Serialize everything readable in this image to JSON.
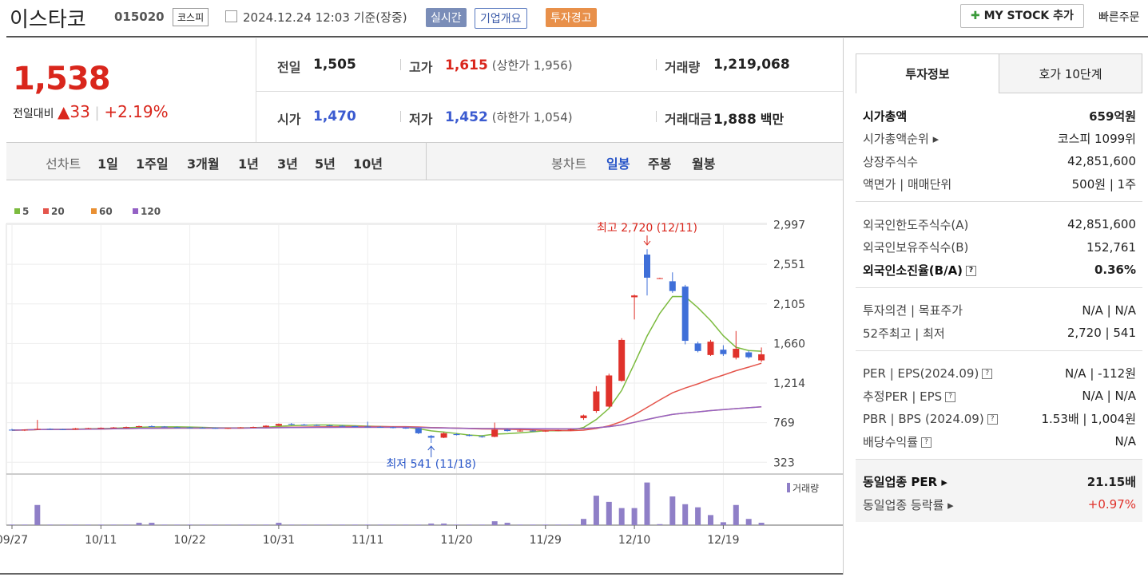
{
  "header": {
    "name": "이스타코",
    "code": "015020",
    "market": "코스피",
    "timestamp": "2024.12.24 12:03 기준(장중)",
    "buttons": [
      "실시간",
      "기업개요",
      "투자경고"
    ],
    "mystock": "MY STOCK 추가",
    "quick_order": "빠른주문"
  },
  "price": {
    "current": "1,538",
    "change_label": "전일대비",
    "change": "33",
    "change_pct": "+2.19%"
  },
  "summary": {
    "rows": [
      [
        {
          "label": "전일",
          "value": "1,505"
        },
        {
          "label": "고가",
          "value": "1,615",
          "extra": "(상한가 1,956)"
        },
        {
          "label": "거래량",
          "value": "1,219,068"
        }
      ],
      [
        {
          "label": "시가",
          "value": "1,470"
        },
        {
          "label": "저가",
          "value": "1,452",
          "extra": "(하한가 1,054)"
        },
        {
          "label": "거래대금",
          "value": "1,888",
          "unit": "백만"
        }
      ]
    ]
  },
  "period_tabs": {
    "line_label": "선차트",
    "line": [
      "1일",
      "1주일",
      "3개월",
      "1년",
      "3년",
      "5년",
      "10년"
    ],
    "candle_label": "봉차트",
    "candle": [
      "일봉",
      "주봉",
      "월봉"
    ],
    "selected_candle": 0
  },
  "chart_data": {
    "type": "candlestick",
    "categories": [
      "09/27",
      null,
      null,
      null,
      null,
      null,
      null,
      "10/11",
      null,
      null,
      null,
      null,
      null,
      null,
      "10/22",
      null,
      null,
      null,
      null,
      null,
      null,
      "10/31",
      null,
      null,
      null,
      null,
      null,
      null,
      "11/11",
      null,
      null,
      null,
      null,
      null,
      null,
      "11/20",
      null,
      null,
      null,
      null,
      null,
      null,
      "11/29",
      null,
      null,
      null,
      null,
      null,
      null,
      "12/10",
      null,
      null,
      null,
      null,
      null,
      null,
      "12/19",
      null,
      null,
      null
    ],
    "open": [
      690,
      685,
      690,
      700,
      695,
      692,
      705,
      708,
      712,
      715,
      720,
      730,
      725,
      718,
      715,
      712,
      710,
      706,
      710,
      716,
      720,
      735,
      755,
      748,
      742,
      738,
      733,
      730,
      726,
      722,
      718,
      712,
      706,
      620,
      600,
      640,
      630,
      615,
      610,
      690,
      675,
      680,
      672,
      678,
      684,
      820,
      900,
      950,
      1240,
      2180,
      2660,
      2390,
      2360,
      2300,
      1660,
      1530,
      1590,
      1500,
      1560,
      1470
    ],
    "high": [
      700,
      695,
      800,
      705,
      700,
      710,
      712,
      715,
      720,
      725,
      735,
      738,
      730,
      725,
      722,
      718,
      715,
      712,
      720,
      725,
      740,
      760,
      765,
      755,
      750,
      745,
      740,
      738,
      780,
      730,
      725,
      718,
      712,
      630,
      660,
      650,
      640,
      625,
      770,
      700,
      690,
      688,
      685,
      690,
      700,
      860,
      1180,
      1320,
      1720,
      2210,
      2720,
      2400,
      2460,
      2320,
      1680,
      1700,
      1640,
      1800,
      1580,
      1615
    ],
    "low": [
      680,
      675,
      685,
      690,
      685,
      688,
      698,
      700,
      705,
      708,
      715,
      720,
      715,
      710,
      708,
      705,
      700,
      698,
      705,
      710,
      715,
      730,
      740,
      735,
      732,
      728,
      725,
      720,
      718,
      712,
      705,
      700,
      640,
      541,
      595,
      625,
      615,
      600,
      605,
      670,
      668,
      670,
      665,
      672,
      678,
      800,
      880,
      940,
      1230,
      1930,
      2200,
      2385,
      2230,
      1650,
      1560,
      1520,
      1520,
      1480,
      1490,
      1452
    ],
    "close": [
      685,
      690,
      700,
      695,
      692,
      705,
      708,
      712,
      715,
      720,
      730,
      725,
      718,
      715,
      712,
      710,
      706,
      710,
      716,
      720,
      735,
      755,
      748,
      742,
      738,
      733,
      730,
      726,
      722,
      718,
      712,
      706,
      650,
      600,
      650,
      630,
      620,
      610,
      690,
      675,
      680,
      672,
      678,
      684,
      692,
      850,
      1120,
      1300,
      1700,
      2200,
      2400,
      2395,
      2250,
      1690,
      1575,
      1680,
      1540,
      1600,
      1505,
      1538
    ],
    "volume": [
      300000,
      300000,
      10400000,
      300000,
      300000,
      300000,
      300000,
      300000,
      300000,
      300000,
      1200000,
      1200000,
      300000,
      300000,
      300000,
      300000,
      300000,
      300000,
      300000,
      300000,
      300000,
      1200000,
      300000,
      300000,
      300000,
      300000,
      300000,
      300000,
      300000,
      300000,
      300000,
      300000,
      300000,
      800000,
      800000,
      300000,
      300000,
      300000,
      2000000,
      1200000,
      300000,
      300000,
      300000,
      300000,
      300000,
      3200000,
      15200000,
      12000000,
      8800000,
      8800000,
      22000000,
      500000,
      14800000,
      10800000,
      9200000,
      5200000,
      1500000,
      10400000,
      3200000,
      1219068
    ],
    "up_color": "#e0322b",
    "down_color": "#3f6fd8",
    "volume_color": "#8f7fc7",
    "volume_label": "거래량",
    "moving_averages": [
      {
        "name": "5",
        "color": "#7cbb3f"
      },
      {
        "name": "20",
        "color": "#e4554c"
      },
      {
        "name": "60",
        "color": "#e99033"
      },
      {
        "name": "120",
        "color": "#9461c5"
      }
    ],
    "ylim": [
      200,
      3010
    ],
    "yticks": [
      323,
      {
        "value": 769,
        "label": "769"
      },
      {
        "value": 1214,
        "label": "1,214"
      },
      {
        "value": 1660,
        "label": "1,660"
      },
      {
        "value": 2105,
        "label": "2,105"
      },
      {
        "value": 2551,
        "label": "2,551"
      },
      {
        "value": 2997,
        "label": "2,997"
      }
    ],
    "grid": true,
    "annotations": {
      "high": "최고 2,720 (12/11)",
      "low": "최저 541 (11/18)"
    }
  },
  "info": {
    "tabs": [
      "투자정보",
      "호가 10단계"
    ],
    "sections": [
      [
        {
          "label": "시가총액",
          "value": "659억원",
          "emphasis": true
        },
        {
          "label": "시가총액순위 ▸",
          "value": "코스피 1099위"
        },
        {
          "label": "상장주식수",
          "value": "42,851,600"
        },
        {
          "label": "액면가 | 매매단위",
          "value": "500원 | 1주"
        }
      ],
      [
        {
          "label": "외국인한도주식수(A)",
          "value": "42,851,600"
        },
        {
          "label": "외국인보유주식수(B)",
          "value": "152,761"
        },
        {
          "label": "외국인소진율(B/A)",
          "value": "0.36%",
          "emphasis": true,
          "help": true
        }
      ],
      [
        {
          "label": "투자의견 | 목표주가",
          "value": "N/A | N/A"
        },
        {
          "label": "52주최고 | 최저",
          "value": "2,720 | 541"
        }
      ],
      [
        {
          "label": "PER | EPS(2024.09)",
          "value": "N/A | -112원",
          "help": true
        },
        {
          "label": "추정PER | EPS",
          "value": "N/A | N/A",
          "help": true
        },
        {
          "label": "PBR | BPS (2024.09)",
          "value": "1.53배 | 1,004원",
          "help": true
        },
        {
          "label": "배당수익률",
          "value": "N/A",
          "help": true
        }
      ],
      [
        {
          "label": "동일업종 PER ▸",
          "value": "21.15배",
          "emphasis": true
        },
        {
          "label": "동일업종 등락률 ▸",
          "value": "+0.97%",
          "color": "#e0322b"
        }
      ]
    ]
  }
}
